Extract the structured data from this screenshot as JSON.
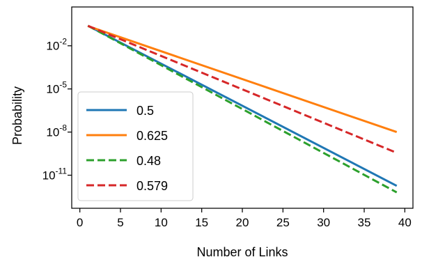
{
  "chart_data": {
    "type": "line",
    "xlabel": "Number of Links",
    "ylabel": "Probability",
    "x_scale": "linear",
    "y_scale": "log",
    "xlim": [
      -1,
      41
    ],
    "ylim_log10": [
      -13.3,
      0.7
    ],
    "x_ticks": [
      0,
      5,
      10,
      15,
      20,
      25,
      30,
      35,
      40
    ],
    "y_ticks": [
      {
        "base": "10",
        "exp": "-2",
        "value": 0.01
      },
      {
        "base": "10",
        "exp": "-5",
        "value": 1e-05
      },
      {
        "base": "10",
        "exp": "-8",
        "value": 1e-08
      },
      {
        "base": "10",
        "exp": "-11",
        "value": 1e-11
      }
    ],
    "grid": false,
    "legend_position": "lower-left",
    "series": [
      {
        "name": "0.5",
        "color": "#1f77b4",
        "dash": "solid",
        "x": [
          1,
          39
        ],
        "y": [
          0.25,
          1.82e-12
        ]
      },
      {
        "name": "0.625",
        "color": "#ff7f0e",
        "dash": "solid",
        "x": [
          1,
          39
        ],
        "y": [
          0.2344,
          1e-08
        ]
      },
      {
        "name": "0.48",
        "color": "#2ca02c",
        "dash": "dashed",
        "x": [
          1,
          39
        ],
        "y": [
          0.2496,
          6.4e-13
        ]
      },
      {
        "name": "0.579",
        "color": "#d62728",
        "dash": "dashed",
        "x": [
          1,
          39
        ],
        "y": [
          0.2438,
          3.6e-10
        ]
      }
    ]
  }
}
